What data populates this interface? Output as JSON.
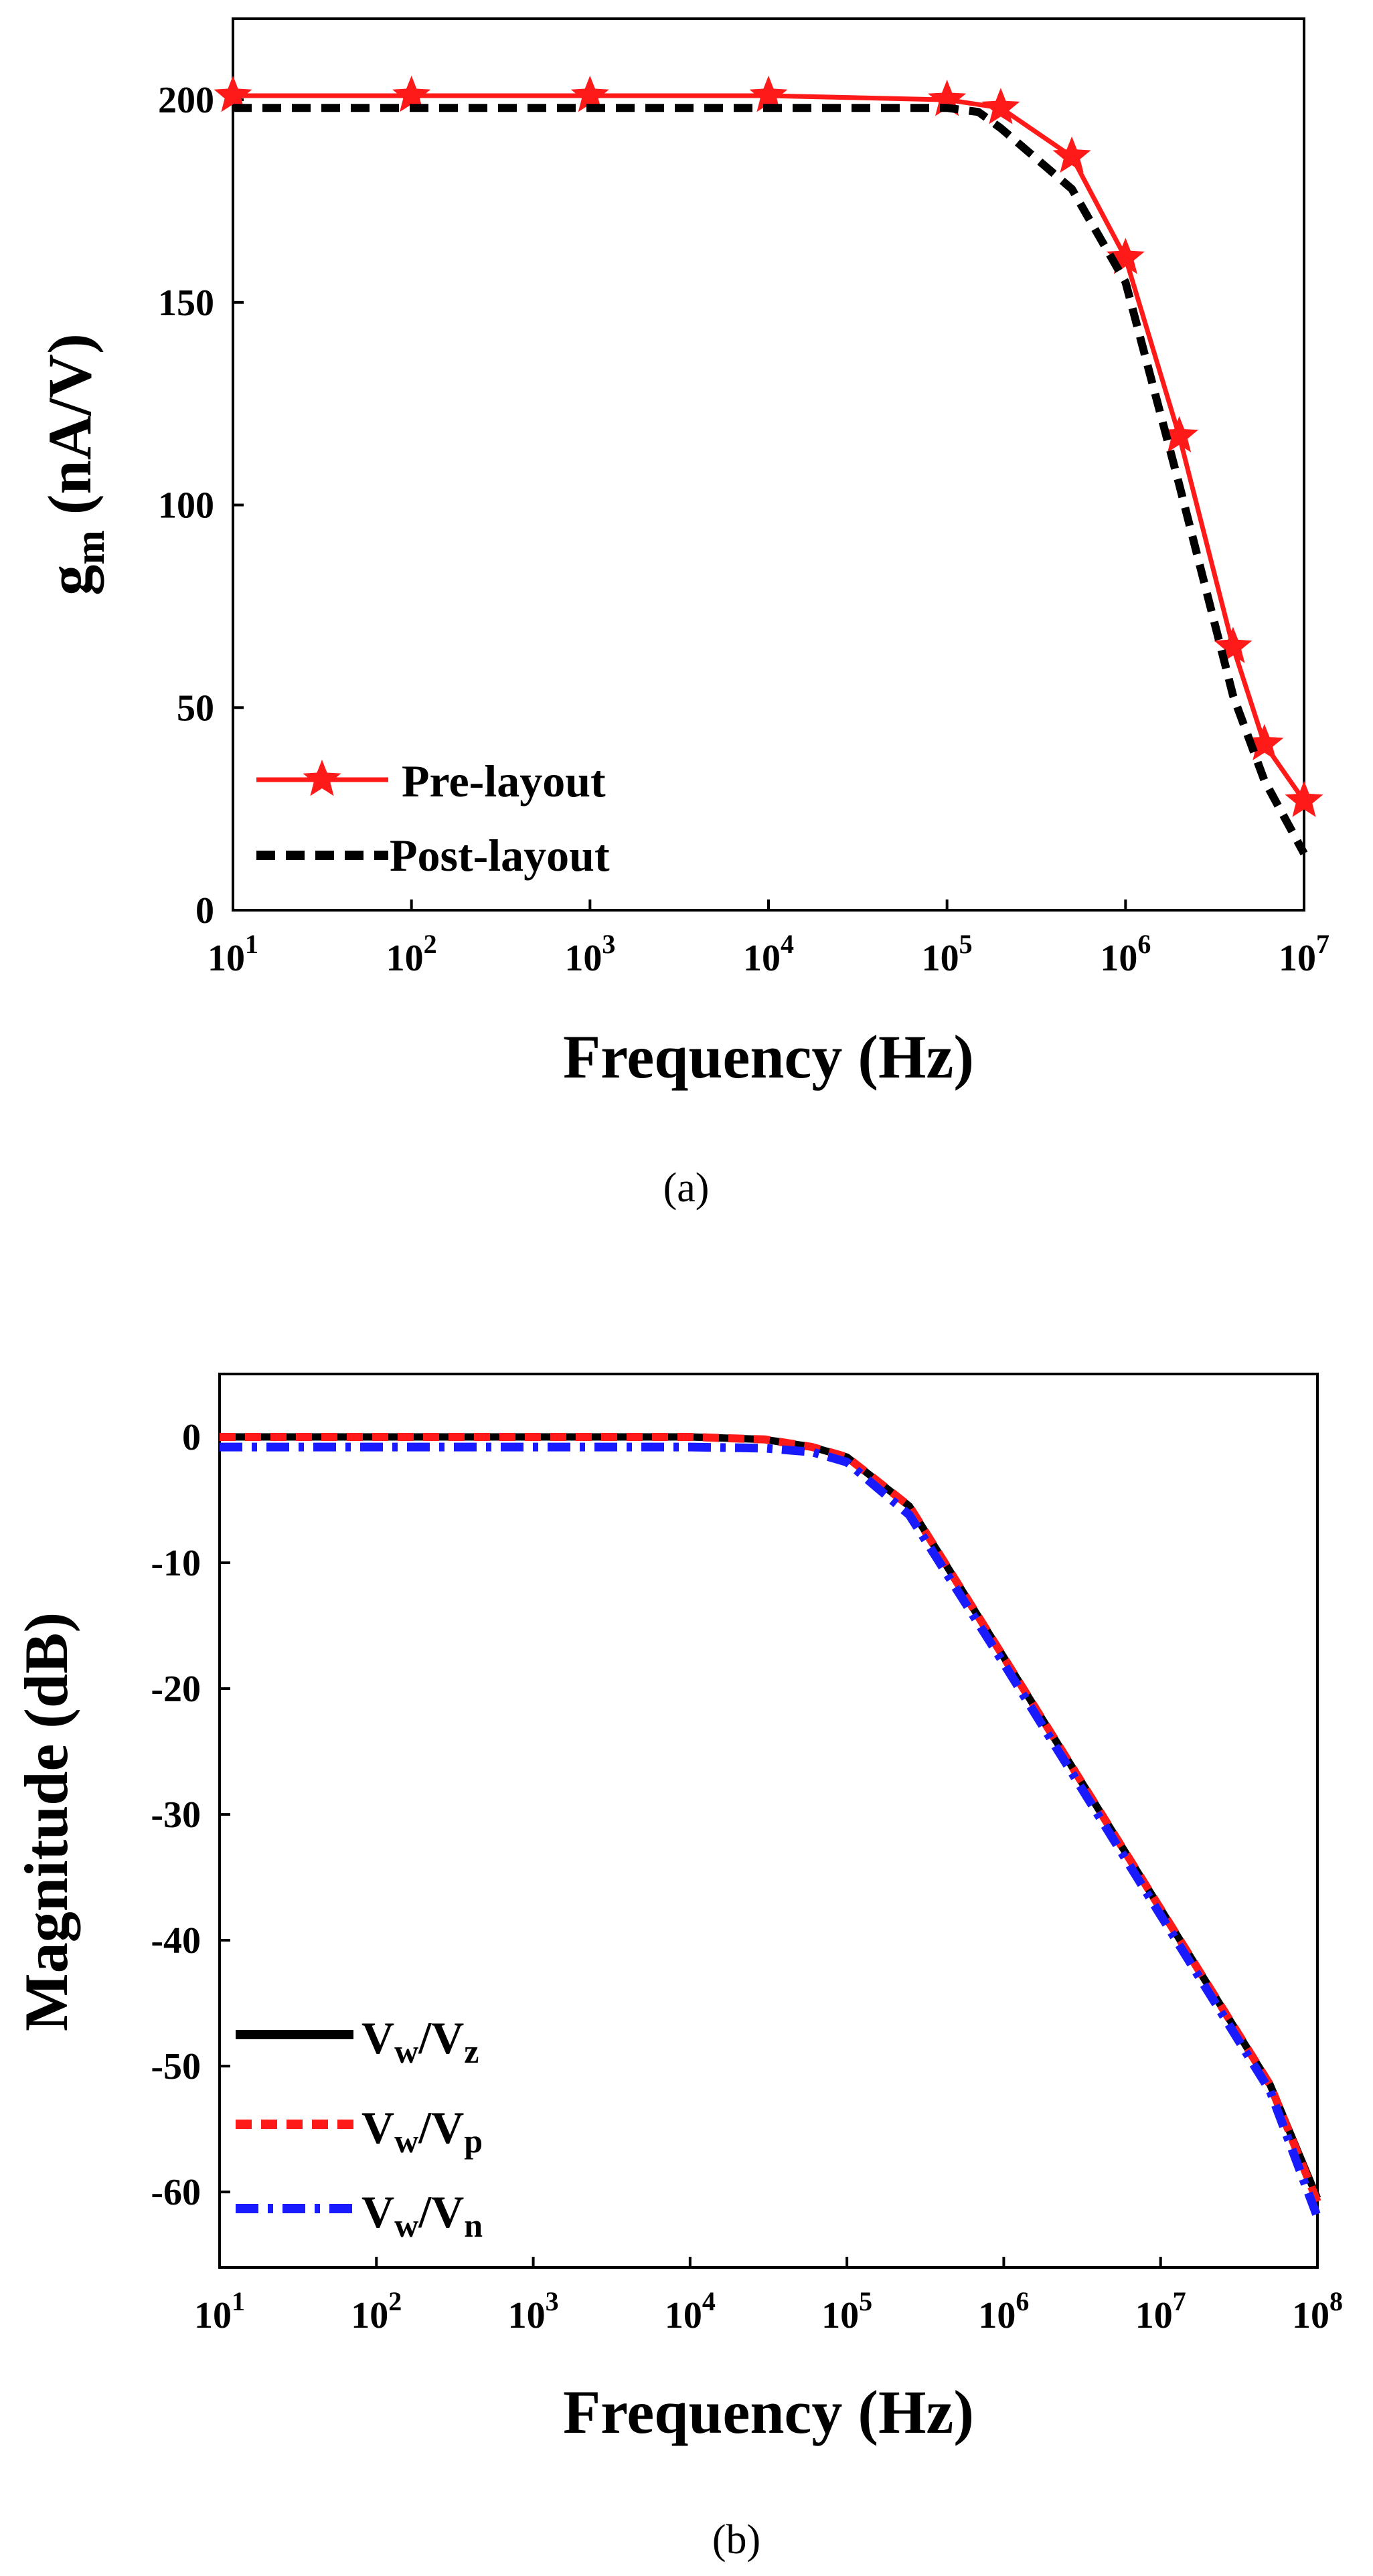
{
  "colors": {
    "red": "#ff1a1a",
    "black": "#000000",
    "blue": "#1a1aff"
  },
  "chart_data": [
    {
      "type": "line",
      "caption": "(a)",
      "xlabel": "Frequency (Hz)",
      "ylabel_base": "g",
      "ylabel_sub": "m",
      "ylabel_rest": " (nA/V)",
      "xscale": "log",
      "xlim": [
        10,
        10000000
      ],
      "ylim": [
        0,
        220
      ],
      "x_tick_exponents": [
        "1",
        "2",
        "3",
        "4",
        "5",
        "6",
        "7"
      ],
      "x_tick_base": "10",
      "y_ticks": [
        0,
        50,
        100,
        150,
        200
      ],
      "y_tick_labels": [
        "0",
        "50",
        "100",
        "150",
        "200"
      ],
      "legend_position": "bottom-left",
      "series": [
        {
          "name": "Pre-layout",
          "color": "#ff1a1a",
          "style": "solid",
          "marker": "star",
          "x": [
            10,
            100,
            1000,
            10000,
            100000,
            200000,
            500000,
            1000000,
            2000000,
            4000000,
            6000000,
            10000000
          ],
          "y": [
            201,
            201,
            201,
            201,
            200,
            198,
            186,
            161,
            117,
            65,
            41,
            27
          ]
        },
        {
          "name": "Post-layout",
          "color": "#000000",
          "style": "dashed",
          "marker": "none",
          "x": [
            10,
            100,
            1000,
            10000,
            100000,
            150000,
            200000,
            500000,
            1000000,
            2000000,
            4000000,
            6000000,
            10000000
          ],
          "y": [
            198,
            198,
            198,
            198,
            198,
            197,
            193,
            178,
            155,
            105,
            53,
            32,
            14
          ]
        }
      ]
    },
    {
      "type": "line",
      "caption": "(b)",
      "xlabel": "Frequency (Hz)",
      "ylabel": "Magnitude (dB)",
      "xscale": "log",
      "xlim": [
        10,
        100000000
      ],
      "ylim": [
        -66,
        5
      ],
      "x_tick_exponents": [
        "1",
        "2",
        "3",
        "4",
        "5",
        "6",
        "7",
        "8"
      ],
      "x_tick_base": "10",
      "y_ticks": [
        0,
        -10,
        -20,
        -30,
        -40,
        -50,
        -60
      ],
      "y_tick_labels": [
        "0",
        "-10",
        "-20",
        "-30",
        "-40",
        "-50",
        "-60"
      ],
      "legend_position": "bottom-left",
      "series": [
        {
          "name": "Vw/Vz",
          "label_parts": [
            "V",
            "w",
            "/V",
            "z"
          ],
          "color": "#000000",
          "style": "solid",
          "x": [
            10,
            100,
            1000,
            10000,
            30000,
            60000,
            100000,
            250000,
            1000000,
            10000000,
            50000000,
            100000000
          ],
          "y": [
            0,
            0,
            0,
            0,
            -0.2,
            -0.8,
            -1.6,
            -5.5,
            -17.5,
            -37.5,
            -51.5,
            -60.5
          ]
        },
        {
          "name": "Vw/Vp",
          "label_parts": [
            "V",
            "w",
            "/V",
            "p"
          ],
          "color": "#ff1a1a",
          "style": "dashed",
          "x": [
            10,
            100,
            1000,
            10000,
            30000,
            60000,
            100000,
            250000,
            1000000,
            10000000,
            50000000,
            100000000
          ],
          "y": [
            0,
            0,
            0,
            0,
            -0.2,
            -0.8,
            -1.6,
            -5.5,
            -17.5,
            -37.5,
            -51.5,
            -60.8
          ]
        },
        {
          "name": "Vw/Vn",
          "label_parts": [
            "V",
            "w",
            "/V",
            "n"
          ],
          "color": "#1a1aff",
          "style": "dashdot",
          "x": [
            10,
            100,
            1000,
            10000,
            30000,
            60000,
            100000,
            250000,
            1000000,
            10000000,
            50000000,
            100000000
          ],
          "y": [
            -0.8,
            -0.8,
            -0.8,
            -0.8,
            -0.9,
            -1.2,
            -2,
            -6.2,
            -18,
            -38,
            -52,
            -62
          ]
        }
      ]
    }
  ]
}
